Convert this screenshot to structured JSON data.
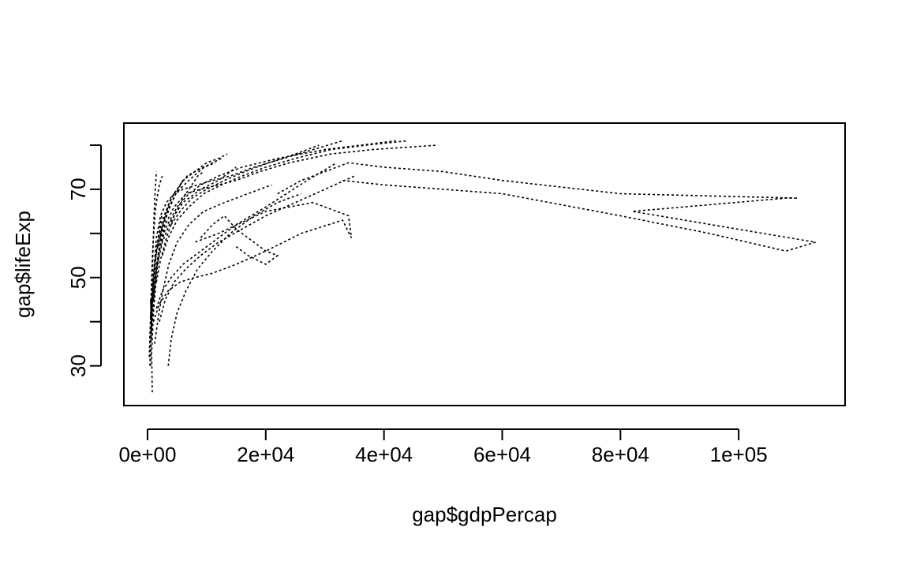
{
  "chart_data": {
    "type": "line",
    "title": "",
    "xlabel": "gap$gdpPercap",
    "ylabel": "gap$lifeExp",
    "xlim": [
      -4000,
      118000
    ],
    "ylim": [
      21,
      85
    ],
    "x_ticks": [
      0,
      20000,
      40000,
      60000,
      80000,
      100000
    ],
    "x_tick_labels": [
      "0e+00",
      "2e+04",
      "4e+04",
      "6e+04",
      "8e+04",
      "1e+05"
    ],
    "y_ticks": [
      30,
      40,
      50,
      60,
      70,
      80
    ],
    "y_tick_labels": [
      "30",
      "",
      "50",
      "",
      "70",
      ""
    ],
    "line_style": "dotted",
    "line_color": "#000000",
    "grid": false,
    "legend": "none",
    "series": [
      {
        "x": [
          800,
          700,
          1000,
          1500,
          2000,
          3000,
          5000,
          7000,
          9000,
          12000,
          16000,
          22000,
          30000,
          36000,
          42000
        ],
        "y": [
          24,
          33,
          42,
          50,
          56,
          61,
          66,
          69,
          71,
          73,
          75,
          77,
          79,
          80,
          81
        ]
      },
      {
        "x": [
          500,
          600,
          800,
          1100,
          1500,
          2200,
          3200,
          4500,
          6000,
          8500,
          11000,
          14000,
          18000,
          23000,
          28000,
          33000
        ],
        "y": [
          30,
          36,
          44,
          52,
          59,
          64,
          67,
          69,
          70,
          71,
          72,
          73,
          75,
          77,
          79,
          81
        ]
      },
      {
        "x": [
          600,
          900,
          1300,
          2000,
          3000,
          4500,
          6500,
          9000,
          12000,
          15000,
          19000,
          24000,
          31000,
          38000,
          49000
        ],
        "y": [
          38,
          45,
          51,
          57,
          62,
          66,
          69,
          70,
          71,
          72,
          74,
          76,
          78,
          79,
          80
        ]
      },
      {
        "x": [
          3500,
          4000,
          5000,
          6500,
          8500,
          11000,
          14000,
          18000,
          22000,
          26000
        ],
        "y": [
          30,
          36,
          42,
          47,
          52,
          56,
          60,
          64,
          67,
          69
        ]
      },
      {
        "x": [
          2000,
          3000,
          4500,
          6500,
          9000,
          12000,
          16000,
          20000,
          25000,
          30000,
          35000
        ],
        "y": [
          40,
          45,
          49,
          52,
          55,
          58,
          61,
          64,
          67,
          70,
          73
        ]
      },
      {
        "x": [
          1200,
          1800,
          2600,
          3600,
          5000,
          7000,
          9500,
          13000,
          17000,
          21000
        ],
        "y": [
          35,
          41,
          47,
          53,
          58,
          62,
          65,
          67,
          69,
          71
        ]
      },
      {
        "x": [
          1000,
          1500,
          2500,
          4000,
          6000,
          9000,
          12000,
          13000,
          14000,
          15000
        ],
        "y": [
          45,
          52,
          58,
          63,
          67,
          70,
          72,
          73,
          74,
          75
        ]
      },
      {
        "x": [
          700,
          1000,
          1500,
          2500,
          4000,
          6000,
          8000,
          10000,
          12000,
          13500
        ],
        "y": [
          42,
          50,
          57,
          63,
          68,
          72,
          74,
          76,
          77,
          78
        ]
      },
      {
        "x": [
          1500,
          2500,
          4000,
          6000,
          8000,
          10000,
          12000,
          15000,
          20000,
          27000,
          32000
        ],
        "y": [
          43,
          47,
          50,
          53,
          55,
          57,
          59,
          62,
          66,
          72,
          76
        ]
      },
      {
        "x": [
          1000,
          2000,
          3500,
          5500,
          8000,
          11000,
          15000,
          20000,
          26000,
          33000,
          34500,
          34000,
          28000,
          20000,
          12000,
          8000
        ],
        "y": [
          40,
          44,
          47,
          49,
          50,
          51,
          53,
          56,
          60,
          63,
          59,
          64,
          67,
          65,
          60,
          58
        ]
      },
      {
        "x": [
          9000,
          11000,
          13000,
          15000,
          18000,
          20000,
          22000,
          20000,
          17000,
          15000
        ],
        "y": [
          59,
          62,
          64,
          61,
          58,
          56,
          55,
          53,
          55,
          57
        ]
      },
      {
        "x": [
          22000,
          26000,
          30000,
          34000,
          40000,
          50000,
          60000,
          80000,
          110000,
          108000,
          82000,
          113000,
          108000,
          95000,
          80000,
          60000,
          40000,
          33000
        ],
        "y": [
          69,
          72,
          74,
          76,
          75,
          74,
          72,
          69,
          68,
          68,
          65,
          58,
          56,
          60,
          64,
          69,
          71,
          72
        ]
      },
      {
        "x": [
          400,
          500,
          600,
          700,
          800,
          900,
          1000,
          1100,
          1200,
          1300,
          1400,
          1500
        ],
        "y": [
          30,
          35,
          40,
          45,
          50,
          55,
          60,
          64,
          67,
          70,
          72,
          74
        ]
      },
      {
        "x": [
          300,
          450,
          550,
          650,
          750,
          900,
          1100,
          1300,
          1600,
          2000,
          2500
        ],
        "y": [
          32,
          38,
          43,
          48,
          52,
          57,
          61,
          65,
          68,
          71,
          73
        ]
      },
      {
        "x": [
          600,
          800,
          1000,
          1200,
          1500,
          1900,
          2400,
          3000,
          3800,
          4800,
          6000
        ],
        "y": [
          36,
          40,
          44,
          48,
          52,
          56,
          60,
          63,
          66,
          69,
          72
        ]
      },
      {
        "x": [
          500,
          700,
          900,
          1100,
          1300,
          1500,
          1700,
          1900,
          2100,
          2400
        ],
        "y": [
          41,
          44,
          47,
          50,
          53,
          56,
          58,
          60,
          62,
          64
        ]
      },
      {
        "x": [
          800,
          1200,
          1800,
          2600,
          3600,
          4800,
          6200,
          7800,
          9600,
          11500
        ],
        "y": [
          48,
          53,
          58,
          62,
          66,
          69,
          71,
          73,
          75,
          76
        ]
      },
      {
        "x": [
          2500,
          3500,
          5000,
          7000,
          9500,
          12500,
          16000,
          20000,
          25000,
          31000,
          37000,
          44000
        ],
        "y": [
          55,
          59,
          63,
          66,
          69,
          71,
          73,
          75,
          77,
          79,
          80,
          81
        ]
      },
      {
        "x": [
          4000,
          5500,
          7500,
          10000,
          13000,
          16500,
          20500,
          25000,
          29000
        ],
        "y": [
          62,
          65,
          68,
          70,
          72,
          74,
          76,
          78,
          80
        ]
      },
      {
        "x": [
          1500,
          2200,
          3200,
          4500,
          6000,
          7500,
          8500,
          9500
        ],
        "y": [
          49,
          54,
          59,
          64,
          68,
          71,
          73,
          74
        ]
      },
      {
        "x": [
          350,
          420,
          500,
          580,
          650,
          720,
          800,
          880,
          950,
          1050
        ],
        "y": [
          34,
          37,
          40,
          42,
          44,
          46,
          47,
          48,
          49,
          50
        ]
      },
      {
        "x": [
          700,
          650,
          600,
          550,
          500,
          600,
          800,
          1000,
          900,
          750
        ],
        "y": [
          38,
          40,
          42,
          44,
          45,
          43,
          46,
          48,
          46,
          44
        ]
      },
      {
        "x": [
          1800,
          2400,
          3000,
          3700,
          4500,
          5500,
          6700,
          8000,
          9500,
          11000,
          12500
        ],
        "y": [
          57,
          61,
          64,
          67,
          69,
          71,
          73,
          74,
          75,
          76,
          77
        ]
      }
    ]
  }
}
